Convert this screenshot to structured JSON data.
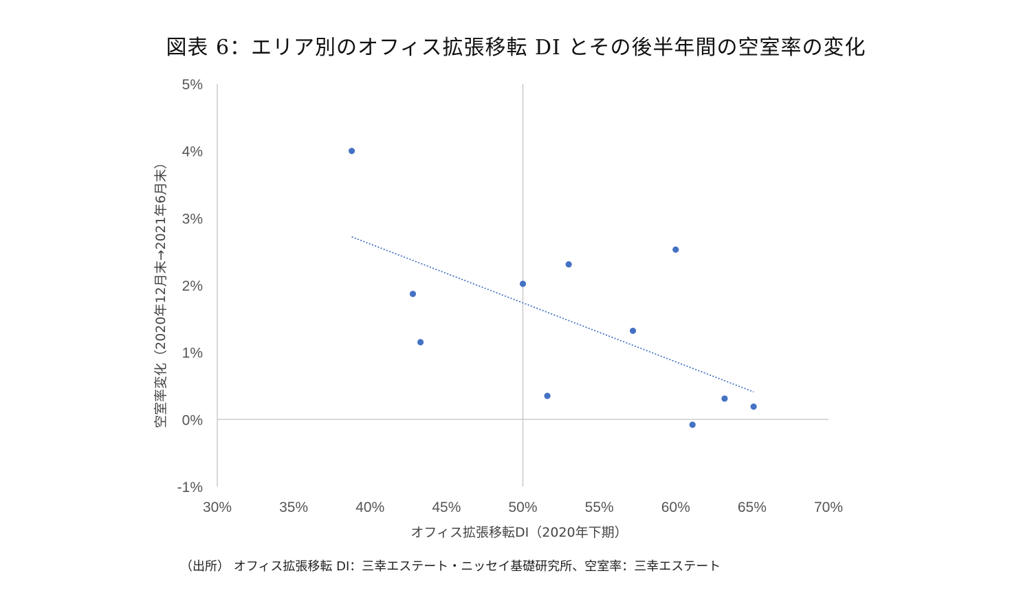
{
  "title": "図表 6：エリア別のオフィス拡張移転 DI とその後半年間の空室率の変化",
  "source": "（出所） オフィス拡張移転 DI：三幸エステート・ニッセイ基礎研究所、空室率：三幸エステート",
  "chart_data": {
    "type": "scatter",
    "xlabel": "オフィス拡張移転DI（2020年下期）",
    "ylabel": "空室率変化（2020年12月末→2021年6月末）",
    "xlim": [
      0.3,
      0.7
    ],
    "ylim": [
      -0.01,
      0.05
    ],
    "x_ticks": [
      0.3,
      0.35,
      0.4,
      0.45,
      0.5,
      0.55,
      0.6,
      0.65,
      0.7
    ],
    "x_tick_labels": [
      "30%",
      "35%",
      "40%",
      "45%",
      "50%",
      "55%",
      "60%",
      "65%",
      "70%"
    ],
    "y_ticks": [
      -0.01,
      0.0,
      0.01,
      0.02,
      0.03,
      0.04,
      0.05
    ],
    "y_tick_labels": [
      "-1%",
      "0%",
      "1%",
      "2%",
      "3%",
      "4%",
      "5%"
    ],
    "grid": false,
    "reference_lines": {
      "x": 0.5,
      "y": 0.0
    },
    "points": [
      {
        "x": 0.388,
        "y": 0.04
      },
      {
        "x": 0.428,
        "y": 0.0187
      },
      {
        "x": 0.433,
        "y": 0.0115
      },
      {
        "x": 0.5,
        "y": 0.0202
      },
      {
        "x": 0.516,
        "y": 0.0035
      },
      {
        "x": 0.53,
        "y": 0.0231
      },
      {
        "x": 0.572,
        "y": 0.0132
      },
      {
        "x": 0.6,
        "y": 0.0253
      },
      {
        "x": 0.611,
        "y": -0.0008
      },
      {
        "x": 0.632,
        "y": 0.0031
      },
      {
        "x": 0.651,
        "y": 0.0019
      }
    ],
    "trendline": {
      "style": "dotted",
      "x": [
        0.388,
        0.651
      ],
      "y": [
        0.0272,
        0.0041
      ]
    },
    "colors": {
      "points": "#4472c4",
      "trendline": "#4472c4",
      "axes": "#bfbfbf"
    }
  }
}
